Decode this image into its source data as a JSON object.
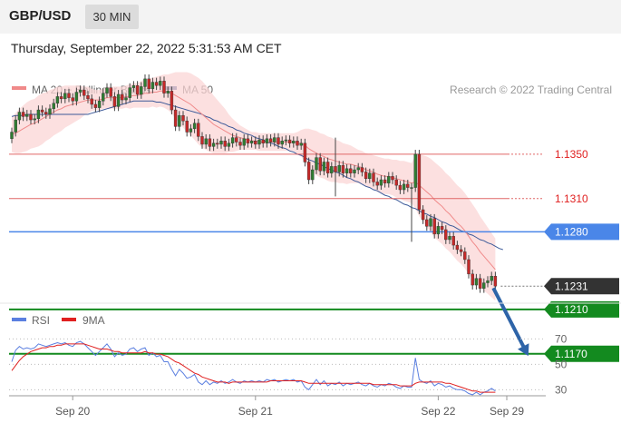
{
  "header": {
    "symbol": "GBP/USD",
    "timeframe": "30 MIN",
    "datetime": "Thursday, September 22, 2022 5:31:53 AM CET"
  },
  "colors": {
    "candle_up": "#2e7d32",
    "candle_down": "#c62828",
    "bollinger_fill": "#fbd5d5",
    "ma20": "#f08a8a",
    "ma50": "#3d5a99",
    "resistance": "#e06666",
    "resistance_label": "#e02020",
    "current": "#4a86e8",
    "support": "#138a1f",
    "rsi": "#5b7fe0",
    "rsi_ma": "#e02020",
    "price_tag": "#333333",
    "arrow": "#2e64a8"
  },
  "chart_data": [
    {
      "type": "candlestick",
      "legend_position": "top-left",
      "legend": [
        {
          "name": "MA 20 + Bollinger Bands",
          "color": "#f08a8a"
        },
        {
          "name": "MA 50",
          "color": "#3d5a99"
        }
      ],
      "source": "Research © 2022 Trading Central",
      "ylim": [
        1.116,
        1.144
      ],
      "x_ticks": [
        {
          "label": "Sep 20",
          "index": 16
        },
        {
          "label": "Sep 21",
          "index": 64
        },
        {
          "label": "Sep 22",
          "index": 112
        },
        {
          "label": "Sep 29",
          "index": 130
        }
      ],
      "levels": [
        {
          "label": "1.1350",
          "value": 1.135,
          "kind": "resistance"
        },
        {
          "label": "1.1310",
          "value": 1.131,
          "kind": "resistance"
        },
        {
          "label": "1.1280",
          "value": 1.128,
          "kind": "current"
        },
        {
          "label": "1.1231",
          "value": 1.1231,
          "kind": "last"
        },
        {
          "label": "1.1210",
          "value": 1.121,
          "kind": "support"
        },
        {
          "label": "1.1170",
          "value": 1.117,
          "kind": "support"
        }
      ],
      "forecast_arrow": {
        "from_index": 126,
        "from_value": 1.1231,
        "to_index": 135,
        "to_value": 1.117
      },
      "close": [
        1.137,
        1.1381,
        1.1388,
        1.1384,
        1.1386,
        1.1381,
        1.1382,
        1.139,
        1.1388,
        1.1386,
        1.1391,
        1.1396,
        1.1402,
        1.14,
        1.1405,
        1.1401,
        1.1398,
        1.1406,
        1.1408,
        1.1403,
        1.14,
        1.1395,
        1.1392,
        1.1398,
        1.1405,
        1.141,
        1.1402,
        1.1393,
        1.1404,
        1.1399,
        1.1401,
        1.141,
        1.1412,
        1.1404,
        1.1411,
        1.1418,
        1.1409,
        1.1415,
        1.1412,
        1.1416,
        1.1405,
        1.1407,
        1.139,
        1.1375,
        1.1385,
        1.138,
        1.137,
        1.1373,
        1.1378,
        1.1366,
        1.1359,
        1.1364,
        1.1357,
        1.136,
        1.1359,
        1.1362,
        1.1357,
        1.136,
        1.1365,
        1.1361,
        1.1358,
        1.1364,
        1.136,
        1.1362,
        1.1359,
        1.1363,
        1.136,
        1.1364,
        1.1361,
        1.1365,
        1.1359,
        1.1362,
        1.1363,
        1.136,
        1.1362,
        1.1358,
        1.136,
        1.1343,
        1.1327,
        1.1336,
        1.1347,
        1.1335,
        1.1343,
        1.1333,
        1.1339,
        1.1334,
        1.134,
        1.1333,
        1.1337,
        1.1333,
        1.1336,
        1.1338,
        1.1334,
        1.1328,
        1.1333,
        1.1325,
        1.1322,
        1.1327,
        1.1324,
        1.133,
        1.1327,
        1.1322,
        1.1318,
        1.1323,
        1.132,
        1.132,
        1.135,
        1.13,
        1.1291,
        1.1285,
        1.1292,
        1.1278,
        1.1285,
        1.1282,
        1.1273,
        1.1276,
        1.1268,
        1.1264,
        1.1262,
        1.1255,
        1.1242,
        1.1232,
        1.1238,
        1.1229,
        1.1234,
        1.1236,
        1.124,
        1.1231
      ],
      "ma20": [
        1.1368,
        1.1369,
        1.1371,
        1.1373,
        1.1375,
        1.1377,
        1.1378,
        1.138,
        1.1382,
        1.1384,
        1.1386,
        1.1388,
        1.139,
        1.1391,
        1.1393,
        1.1394,
        1.1395,
        1.1396,
        1.1397,
        1.1398,
        1.1399,
        1.1399,
        1.1399,
        1.1399,
        1.14,
        1.1401,
        1.1401,
        1.1401,
        1.1401,
        1.1401,
        1.1402,
        1.1402,
        1.1403,
        1.1403,
        1.1404,
        1.1405,
        1.1405,
        1.1406,
        1.1406,
        1.1407,
        1.1407,
        1.1406,
        1.1405,
        1.1403,
        1.1401,
        1.1399,
        1.1397,
        1.1395,
        1.1392,
        1.1389,
        1.1386,
        1.1383,
        1.138,
        1.1377,
        1.1375,
        1.1373,
        1.1371,
        1.1369,
        1.1367,
        1.1366,
        1.1365,
        1.1364,
        1.1363,
        1.1362,
        1.1362,
        1.1361,
        1.1361,
        1.1361,
        1.1361,
        1.1361,
        1.1361,
        1.1361,
        1.1361,
        1.1361,
        1.1361,
        1.136,
        1.136,
        1.1358,
        1.1355,
        1.1353,
        1.1351,
        1.1349,
        1.1348,
        1.1346,
        1.1345,
        1.1344,
        1.1343,
        1.1342,
        1.1341,
        1.1341,
        1.134,
        1.1339,
        1.1338,
        1.1336,
        1.1335,
        1.1334,
        1.1332,
        1.1331,
        1.133,
        1.133,
        1.1329,
        1.1328,
        1.1327,
        1.1326,
        1.1325,
        1.1324,
        1.1325,
        1.1322,
        1.1319,
        1.1316,
        1.1313,
        1.1309,
        1.1306,
        1.1303,
        1.1299,
        1.1296,
        1.1292,
        1.1288,
        1.1285,
        1.1281,
        1.1276,
        1.1271,
        1.1267,
        1.1262,
        1.1258,
        1.1254,
        1.125,
        1.1246
      ],
      "bb_width": [
        0.0016,
        0.0018,
        0.002,
        0.0021,
        0.0022,
        0.0022,
        0.0022,
        0.0023,
        0.0023,
        0.0022,
        0.0022,
        0.0021,
        0.0021,
        0.002,
        0.0019,
        0.0018,
        0.0017,
        0.0016,
        0.0015,
        0.0013,
        0.0012,
        0.001,
        0.0009,
        0.0009,
        0.0009,
        0.001,
        0.001,
        0.001,
        0.001,
        0.001,
        0.001,
        0.0011,
        0.0011,
        0.0011,
        0.0012,
        0.0013,
        0.0013,
        0.0013,
        0.0014,
        0.0014,
        0.0015,
        0.0016,
        0.0018,
        0.0021,
        0.0023,
        0.0025,
        0.0027,
        0.0028,
        0.0029,
        0.003,
        0.003,
        0.0029,
        0.0028,
        0.0026,
        0.0024,
        0.0022,
        0.002,
        0.0017,
        0.0015,
        0.0013,
        0.0011,
        0.001,
        0.0009,
        0.0008,
        0.0008,
        0.0008,
        0.0008,
        0.0008,
        0.0008,
        0.0008,
        0.0008,
        0.0008,
        0.0008,
        0.0008,
        0.0008,
        0.001,
        0.0012,
        0.0015,
        0.0018,
        0.0019,
        0.002,
        0.002,
        0.002,
        0.002,
        0.002,
        0.0019,
        0.0019,
        0.0018,
        0.0018,
        0.0017,
        0.0016,
        0.0015,
        0.0015,
        0.0015,
        0.0015,
        0.0015,
        0.0016,
        0.0016,
        0.0016,
        0.0016,
        0.0016,
        0.0017,
        0.0017,
        0.0018,
        0.0018,
        0.0018,
        0.0024,
        0.0028,
        0.003,
        0.0032,
        0.0033,
        0.0034,
        0.0034,
        0.0034,
        0.0034,
        0.0034,
        0.0034,
        0.0034,
        0.0034,
        0.0034,
        0.0034,
        0.0034,
        0.0033,
        0.0032,
        0.0031,
        0.003,
        0.0029,
        0.0028
      ],
      "ma50": [
        1.1384,
        1.1385,
        1.1385,
        1.1385,
        1.1386,
        1.1386,
        1.1386,
        1.1386,
        1.1386,
        1.1386,
        1.1386,
        1.1386,
        1.1386,
        1.1386,
        1.1386,
        1.1386,
        1.1386,
        1.1386,
        1.1386,
        1.1386,
        1.1386,
        1.1387,
        1.1388,
        1.1389,
        1.139,
        1.1391,
        1.1392,
        1.1393,
        1.1394,
        1.1395,
        1.1396,
        1.1397,
        1.1398,
        1.1398,
        1.1398,
        1.1398,
        1.1398,
        1.1398,
        1.1397,
        1.1397,
        1.1396,
        1.1395,
        1.1394,
        1.1393,
        1.1392,
        1.1391,
        1.139,
        1.1389,
        1.1388,
        1.1387,
        1.1386,
        1.1384,
        1.1383,
        1.1381,
        1.138,
        1.1378,
        1.1377,
        1.1375,
        1.1374,
        1.1372,
        1.1371,
        1.1369,
        1.1368,
        1.1367,
        1.1365,
        1.1364,
        1.1363,
        1.1361,
        1.136,
        1.1359,
        1.1357,
        1.1356,
        1.1355,
        1.1353,
        1.1352,
        1.135,
        1.1349,
        1.1347,
        1.1345,
        1.1344,
        1.1342,
        1.1341,
        1.1339,
        1.1337,
        1.1336,
        1.1334,
        1.1333,
        1.1331,
        1.1329,
        1.1328,
        1.1326,
        1.1325,
        1.1323,
        1.1321,
        1.132,
        1.1318,
        1.1317,
        1.1315,
        1.1313,
        1.1312,
        1.131,
        1.1309,
        1.1307,
        1.1305,
        1.1304,
        1.1302,
        1.1301,
        1.1299,
        1.1297,
        1.1296,
        1.1294,
        1.1293,
        1.1291,
        1.1289,
        1.1288,
        1.1286,
        1.1285,
        1.1283,
        1.1281,
        1.128,
        1.1278,
        1.1277,
        1.1275,
        1.1273,
        1.1272,
        1.127,
        1.1269,
        1.1267,
        1.1265,
        1.1264
      ]
    },
    {
      "type": "line",
      "legend_position": "top-left",
      "series": [
        {
          "name": "RSI",
          "color": "#5b7fe0",
          "values": [
            52,
            61,
            64,
            62,
            63,
            62,
            63,
            66,
            65,
            64,
            65,
            66,
            67,
            66,
            67,
            65,
            64,
            67,
            68,
            66,
            63,
            60,
            57,
            60,
            63,
            66,
            62,
            56,
            59,
            57,
            58,
            62,
            63,
            60,
            62,
            63,
            57,
            59,
            56,
            57,
            52,
            52,
            46,
            41,
            46,
            43,
            39,
            40,
            42,
            36,
            34,
            37,
            34,
            36,
            35,
            37,
            35,
            36,
            38,
            36,
            35,
            37,
            36,
            37,
            36,
            37,
            36,
            38,
            37,
            38,
            36,
            37,
            38,
            37,
            38,
            36,
            37,
            32,
            30,
            34,
            38,
            34,
            37,
            33,
            35,
            34,
            36,
            33,
            35,
            34,
            35,
            36,
            34,
            33,
            35,
            33,
            32,
            34,
            33,
            35,
            34,
            32,
            31,
            33,
            32,
            32,
            55,
            38,
            36,
            35,
            37,
            33,
            35,
            34,
            32,
            33,
            31,
            30,
            30,
            29,
            27,
            26,
            28,
            26,
            28,
            29,
            31,
            29
          ]
        },
        {
          "name": "9MA",
          "color": "#e02020",
          "values": [
            45,
            49,
            53,
            56,
            58,
            60,
            61,
            62,
            63,
            63,
            64,
            64,
            65,
            65,
            66,
            66,
            66,
            66,
            66,
            66,
            65,
            64,
            63,
            62,
            62,
            62,
            61,
            60,
            60,
            59,
            59,
            59,
            59,
            59,
            59,
            60,
            59,
            59,
            58,
            58,
            57,
            56,
            54,
            52,
            51,
            49,
            47,
            45,
            43,
            42,
            40,
            39,
            38,
            37,
            36,
            36,
            36,
            35,
            36,
            36,
            36,
            36,
            36,
            36,
            36,
            36,
            36,
            36,
            37,
            37,
            37,
            37,
            37,
            37,
            37,
            37,
            37,
            36,
            35,
            35,
            35,
            35,
            35,
            35,
            35,
            35,
            35,
            35,
            35,
            35,
            35,
            35,
            35,
            35,
            35,
            34,
            34,
            34,
            34,
            34,
            34,
            34,
            33,
            33,
            33,
            33,
            35,
            36,
            36,
            36,
            36,
            36,
            36,
            36,
            35,
            35,
            34,
            33,
            32,
            31,
            30,
            29,
            29,
            28,
            28,
            28,
            28,
            28
          ]
        }
      ],
      "y_ticks": [
        "70",
        "50",
        "30"
      ],
      "ylim": [
        20,
        80
      ]
    }
  ]
}
